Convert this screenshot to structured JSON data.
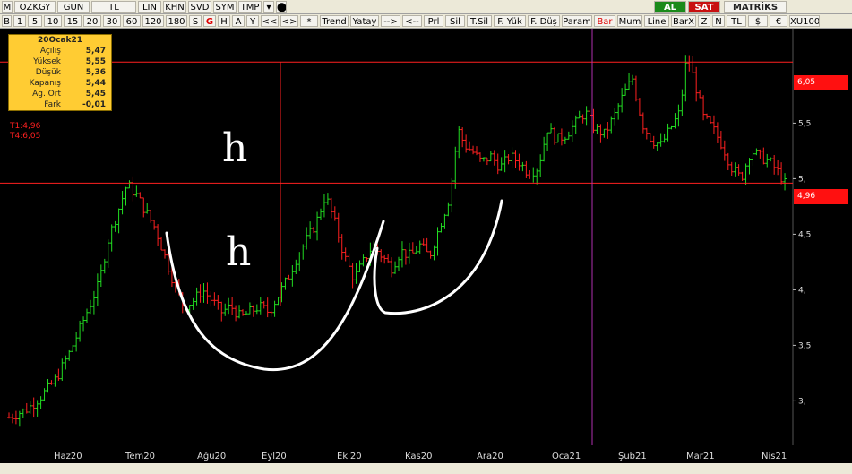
{
  "toolbar": {
    "row1": [
      {
        "label": "M",
        "w": 12,
        "name": "menu-button"
      },
      {
        "label": "OZKGY",
        "w": 46,
        "name": "symbol-field"
      },
      {
        "label": "GUN",
        "w": 36,
        "name": "period-gun-button"
      },
      {
        "label": "TL",
        "w": 50,
        "name": "currency-tl-button"
      },
      {
        "label": "LIN",
        "w": 26,
        "name": "lin-button"
      },
      {
        "label": "KHN",
        "w": 26,
        "name": "khn-button"
      },
      {
        "label": "SVD",
        "w": 26,
        "name": "svd-button"
      },
      {
        "label": "SYM",
        "w": 26,
        "name": "sym-button"
      },
      {
        "label": "TMP",
        "w": 26,
        "name": "tmp-button"
      },
      {
        "label": "▾",
        "w": 12,
        "name": "tmp-dropdown-icon"
      },
      {
        "label": "⬤",
        "w": 12,
        "name": "twitter-icon"
      }
    ],
    "row2": [
      {
        "label": "B",
        "w": 11
      },
      {
        "label": "1",
        "w": 14
      },
      {
        "label": "5",
        "w": 16
      },
      {
        "label": "10",
        "w": 20
      },
      {
        "label": "15",
        "w": 20
      },
      {
        "label": "20",
        "w": 20
      },
      {
        "label": "30",
        "w": 20
      },
      {
        "label": "60",
        "w": 20
      },
      {
        "label": "120",
        "w": 24
      },
      {
        "label": "180",
        "w": 24
      },
      {
        "label": "S",
        "w": 14
      },
      {
        "label": "G",
        "w": 14
      },
      {
        "label": "H",
        "w": 14
      },
      {
        "label": "A",
        "w": 14
      },
      {
        "label": "Y",
        "w": 14
      },
      {
        "label": "<<",
        "w": 20
      },
      {
        "label": "<>",
        "w": 20
      },
      {
        "label": "*",
        "w": 20
      },
      {
        "label": "Trend",
        "w": 32
      },
      {
        "label": "Yatay",
        "w": 32
      },
      {
        "label": "-->",
        "w": 22
      },
      {
        "label": "<--",
        "w": 22
      },
      {
        "label": "Prl",
        "w": 22
      },
      {
        "label": "Sil",
        "w": 22
      },
      {
        "label": "T.Sil",
        "w": 28
      },
      {
        "label": "F. Yük",
        "w": 36
      },
      {
        "label": "F. Düş",
        "w": 36
      },
      {
        "label": "Param",
        "w": 34
      },
      {
        "label": "Bar",
        "w": 24
      },
      {
        "label": "Mum",
        "w": 28
      },
      {
        "label": "Line",
        "w": 28
      },
      {
        "label": "BarX",
        "w": 28
      },
      {
        "label": "Z",
        "w": 14
      },
      {
        "label": "N",
        "w": 14
      },
      {
        "label": "TL",
        "w": 22
      },
      {
        "label": "$",
        "w": 22
      },
      {
        "label": "€",
        "w": 20
      },
      {
        "label": "XU100",
        "w": 34
      }
    ],
    "al_label": "AL",
    "sat_label": "SAT",
    "brand": "MATRİKS"
  },
  "info_box": {
    "title": "20Ocak21",
    "rows": [
      {
        "label": "Açılış",
        "value": "5,47"
      },
      {
        "label": "Yüksek",
        "value": "5,55"
      },
      {
        "label": "Düşük",
        "value": "5,36"
      },
      {
        "label": "Kapanış",
        "value": "5,44"
      },
      {
        "label": "Ağ. Ort",
        "value": "5,45"
      },
      {
        "label": "Fark",
        "value": "-0,01"
      }
    ]
  },
  "trend_labels": {
    "t1": "T1:4,96",
    "t4": "T4:6,05"
  },
  "price_tags": {
    "upper": "6,05",
    "lower": "4,96"
  },
  "colors": {
    "bg": "#000000",
    "up": "#22dd22",
    "down": "#ff2020",
    "hline": "#ff2020",
    "annotation": "#ffffff"
  },
  "annotations": {
    "letter1": "h",
    "letter2": "h"
  },
  "chart_data": {
    "type": "bar",
    "title": "",
    "ylim": [
      2.6,
      6.35
    ],
    "y_ticks": [
      3,
      3.5,
      4,
      4.5,
      5,
      5.5
    ],
    "y_tick_labels": [
      "3,",
      "3,5",
      "4,",
      "4,5",
      "5,",
      "5,5"
    ],
    "x_labels": [
      "Haz20",
      "Tem20",
      "Ağu20",
      "Eyl20",
      "Eki20",
      "Kas20",
      "Ara20",
      "Oca21",
      "Şub21",
      "Mar21",
      "Nis21"
    ],
    "horizontal_lines": [
      6.05,
      4.96
    ],
    "crosshair_date": "20Ocak21",
    "pattern": "cup and handle",
    "series_close_path": [
      [
        0,
        2.85
      ],
      [
        8,
        2.93
      ],
      [
        14,
        3.05
      ],
      [
        20,
        3.2
      ],
      [
        26,
        3.45
      ],
      [
        32,
        3.75
      ],
      [
        38,
        4.05
      ],
      [
        42,
        4.45
      ],
      [
        46,
        4.7
      ],
      [
        50,
        4.95
      ],
      [
        54,
        4.85
      ],
      [
        58,
        4.7
      ],
      [
        62,
        4.55
      ],
      [
        66,
        4.3
      ],
      [
        70,
        4.05
      ],
      [
        74,
        3.85
      ],
      [
        78,
        3.9
      ],
      [
        82,
        4.0
      ],
      [
        86,
        3.9
      ],
      [
        90,
        3.8
      ],
      [
        94,
        3.85
      ],
      [
        98,
        3.75
      ],
      [
        102,
        3.8
      ],
      [
        106,
        3.85
      ],
      [
        110,
        3.8
      ],
      [
        114,
        3.95
      ],
      [
        118,
        4.1
      ],
      [
        122,
        4.3
      ],
      [
        126,
        4.45
      ],
      [
        130,
        4.6
      ],
      [
        134,
        4.85
      ],
      [
        138,
        4.6
      ],
      [
        142,
        4.3
      ],
      [
        146,
        4.1
      ],
      [
        150,
        4.25
      ],
      [
        154,
        4.4
      ],
      [
        158,
        4.3
      ],
      [
        162,
        4.2
      ],
      [
        166,
        4.35
      ],
      [
        170,
        4.3
      ],
      [
        174,
        4.4
      ],
      [
        178,
        4.3
      ],
      [
        182,
        4.55
      ],
      [
        186,
        4.8
      ],
      [
        188,
        5.05
      ],
      [
        190,
        5.45
      ],
      [
        193,
        5.3
      ],
      [
        196,
        5.25
      ],
      [
        200,
        5.15
      ],
      [
        204,
        5.2
      ],
      [
        208,
        5.1
      ],
      [
        212,
        5.2
      ],
      [
        216,
        5.15
      ],
      [
        220,
        5.05
      ],
      [
        224,
        5.1
      ],
      [
        228,
        5.45
      ],
      [
        232,
        5.35
      ],
      [
        236,
        5.4
      ],
      [
        240,
        5.5
      ],
      [
        244,
        5.6
      ],
      [
        248,
        5.45
      ],
      [
        252,
        5.4
      ],
      [
        256,
        5.55
      ],
      [
        260,
        5.75
      ],
      [
        264,
        5.9
      ],
      [
        268,
        5.5
      ],
      [
        272,
        5.35
      ],
      [
        276,
        5.3
      ],
      [
        280,
        5.45
      ],
      [
        284,
        5.6
      ],
      [
        287,
        6.1
      ],
      [
        290,
        5.9
      ],
      [
        294,
        5.55
      ],
      [
        298,
        5.45
      ],
      [
        302,
        5.3
      ],
      [
        306,
        5.1
      ],
      [
        310,
        5.0
      ],
      [
        314,
        5.25
      ],
      [
        318,
        5.2
      ],
      [
        322,
        5.15
      ],
      [
        326,
        5.05
      ],
      [
        330,
        4.9
      ]
    ]
  }
}
